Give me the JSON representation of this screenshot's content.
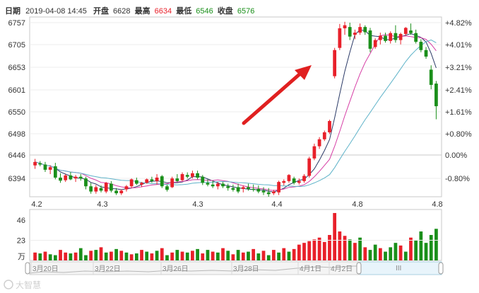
{
  "header": {
    "date_label": "日期",
    "date_value": "2019-04-08 14:45",
    "open_label": "开盘",
    "open_value": "6628",
    "high_label": "最高",
    "high_value": "6634",
    "low_label": "最低",
    "low_value": "6546",
    "close_label": "收盘",
    "close_value": "6576"
  },
  "colors": {
    "up": "#e8202a",
    "down": "#1a8f1a",
    "ma5": "#2b3a67",
    "ma10": "#d63da5",
    "ma20": "#5fb3c9",
    "pct_up": "#e8202a",
    "pct_down": "#1a8f1a",
    "arrow": "#e02020"
  },
  "price_axis": [
    "6757",
    "6705",
    "6653",
    "6601",
    "6550",
    "6498",
    "6446",
    "6394"
  ],
  "pct_axis": [
    "+4.82%",
    "+4.01%",
    "+3.21%",
    "+2.41%",
    "+1.61%",
    "+0.80%",
    "0.00%",
    "-0.80%"
  ],
  "x_labels": [
    "4.2",
    "4.3",
    "4.3",
    "4.4",
    "4.8",
    "4.8"
  ],
  "volume_axis": [
    "46",
    "23"
  ],
  "volume_unit": "万",
  "navigator": {
    "labels": [
      "3月20日",
      "3月22日",
      "3月26日",
      "3月28日",
      "4月1日",
      "4月2日"
    ],
    "grip": "III"
  },
  "watermark": "大智慧",
  "chart_data": {
    "type": "candlestick",
    "ylim": [
      6368,
      6768
    ],
    "candles": [
      [
        6440,
        6455,
        6432,
        6448
      ],
      [
        6445,
        6450,
        6438,
        6442
      ],
      [
        6442,
        6448,
        6425,
        6430
      ],
      [
        6430,
        6440,
        6420,
        6436
      ],
      [
        6438,
        6446,
        6408,
        6412
      ],
      [
        6412,
        6422,
        6400,
        6405
      ],
      [
        6406,
        6420,
        6402,
        6417
      ],
      [
        6417,
        6425,
        6406,
        6408
      ],
      [
        6410,
        6418,
        6402,
        6414
      ],
      [
        6414,
        6420,
        6405,
        6410
      ],
      [
        6410,
        6414,
        6385,
        6392
      ],
      [
        6392,
        6400,
        6375,
        6380
      ],
      [
        6380,
        6395,
        6375,
        6390
      ],
      [
        6388,
        6394,
        6378,
        6382
      ],
      [
        6380,
        6402,
        6376,
        6400
      ],
      [
        6398,
        6404,
        6378,
        6382
      ],
      [
        6382,
        6388,
        6372,
        6376
      ],
      [
        6376,
        6385,
        6372,
        6382
      ],
      [
        6385,
        6395,
        6380,
        6392
      ],
      [
        6392,
        6410,
        6388,
        6408
      ],
      [
        6406,
        6412,
        6395,
        6398
      ],
      [
        6396,
        6402,
        6390,
        6400
      ],
      [
        6400,
        6410,
        6398,
        6408
      ],
      [
        6408,
        6414,
        6400,
        6404
      ],
      [
        6404,
        6420,
        6396,
        6412
      ],
      [
        6415,
        6418,
        6388,
        6392
      ],
      [
        6392,
        6396,
        6380,
        6384
      ],
      [
        6390,
        6414,
        6388,
        6410
      ],
      [
        6410,
        6420,
        6402,
        6404
      ],
      [
        6406,
        6424,
        6404,
        6420
      ],
      [
        6418,
        6424,
        6410,
        6414
      ],
      [
        6414,
        6428,
        6410,
        6422
      ],
      [
        6422,
        6428,
        6408,
        6412
      ],
      [
        6414,
        6418,
        6395,
        6400
      ],
      [
        6400,
        6408,
        6392,
        6396
      ],
      [
        6396,
        6405,
        6388,
        6392
      ],
      [
        6392,
        6402,
        6385,
        6398
      ],
      [
        6398,
        6402,
        6388,
        6392
      ],
      [
        6392,
        6398,
        6382,
        6388
      ],
      [
        6388,
        6396,
        6380,
        6384
      ],
      [
        6390,
        6398,
        6376,
        6380
      ],
      [
        6386,
        6394,
        6378,
        6390
      ],
      [
        6390,
        6398,
        6382,
        6386
      ],
      [
        6386,
        6396,
        6380,
        6384
      ],
      [
        6386,
        6394,
        6376,
        6380
      ],
      [
        6382,
        6390,
        6372,
        6378
      ],
      [
        6378,
        6388,
        6368,
        6374
      ],
      [
        6376,
        6384,
        6372,
        6380
      ],
      [
        6378,
        6405,
        6372,
        6402
      ],
      [
        6400,
        6408,
        6394,
        6404
      ],
      [
        6404,
        6420,
        6400,
        6418
      ],
      [
        6410,
        6414,
        6396,
        6400
      ],
      [
        6400,
        6410,
        6396,
        6404
      ],
      [
        6404,
        6420,
        6400,
        6416
      ],
      [
        6416,
        6460,
        6412,
        6456
      ],
      [
        6456,
        6490,
        6452,
        6484
      ],
      [
        6484,
        6505,
        6478,
        6500
      ],
      [
        6500,
        6520,
        6496,
        6516
      ],
      [
        6516,
        6545,
        6512,
        6542
      ],
      [
        6645,
        6710,
        6640,
        6705
      ],
      [
        6710,
        6765,
        6705,
        6755
      ],
      [
        6755,
        6770,
        6740,
        6762
      ],
      [
        6758,
        6768,
        6728,
        6736
      ],
      [
        6740,
        6752,
        6730,
        6745
      ],
      [
        6745,
        6766,
        6740,
        6758
      ],
      [
        6758,
        6762,
        6740,
        6746
      ],
      [
        6750,
        6756,
        6700,
        6708
      ],
      [
        6712,
        6732,
        6708,
        6728
      ],
      [
        6728,
        6745,
        6718,
        6738
      ],
      [
        6738,
        6745,
        6722,
        6726
      ],
      [
        6726,
        6748,
        6720,
        6744
      ],
      [
        6744,
        6762,
        6722,
        6728
      ],
      [
        6728,
        6745,
        6718,
        6742
      ],
      [
        6742,
        6758,
        6738,
        6756
      ],
      [
        6750,
        6766,
        6740,
        6744
      ],
      [
        6744,
        6752,
        6720,
        6724
      ],
      [
        6724,
        6730,
        6700,
        6705
      ],
      [
        6705,
        6712,
        6685,
        6690
      ],
      [
        6660,
        6670,
        6615,
        6625
      ],
      [
        6628,
        6634,
        6546,
        6576
      ]
    ],
    "volume_ylim": [
      0,
      58
    ],
    "volumes": [
      [
        9,
        1
      ],
      [
        8,
        0
      ],
      [
        10,
        1
      ],
      [
        7,
        0
      ],
      [
        6,
        0
      ],
      [
        12,
        1
      ],
      [
        9,
        1
      ],
      [
        8,
        0
      ],
      [
        9,
        1
      ],
      [
        14,
        0
      ],
      [
        6,
        0
      ],
      [
        11,
        1
      ],
      [
        12,
        0
      ],
      [
        15,
        1
      ],
      [
        9,
        0
      ],
      [
        10,
        1
      ],
      [
        13,
        0
      ],
      [
        11,
        1
      ],
      [
        9,
        0
      ],
      [
        7,
        1
      ],
      [
        8,
        0
      ],
      [
        12,
        1
      ],
      [
        10,
        0
      ],
      [
        8,
        1
      ],
      [
        11,
        0
      ],
      [
        14,
        1
      ],
      [
        6,
        0
      ],
      [
        9,
        1
      ],
      [
        12,
        0
      ],
      [
        10,
        1
      ],
      [
        9,
        0
      ],
      [
        11,
        1
      ],
      [
        13,
        0
      ],
      [
        8,
        1
      ],
      [
        12,
        0
      ],
      [
        10,
        1
      ],
      [
        9,
        0
      ],
      [
        14,
        1
      ],
      [
        11,
        0
      ],
      [
        7,
        1
      ],
      [
        12,
        0
      ],
      [
        9,
        1
      ],
      [
        10,
        0
      ],
      [
        13,
        1
      ],
      [
        8,
        0
      ],
      [
        11,
        1
      ],
      [
        6,
        0
      ],
      [
        12,
        1
      ],
      [
        9,
        0
      ],
      [
        14,
        1
      ],
      [
        10,
        0
      ],
      [
        13,
        1
      ],
      [
        18,
        1
      ],
      [
        20,
        1
      ],
      [
        22,
        1
      ],
      [
        24,
        1
      ],
      [
        26,
        1
      ],
      [
        21,
        1
      ],
      [
        29,
        1
      ],
      [
        54,
        1
      ],
      [
        33,
        1
      ],
      [
        28,
        1
      ],
      [
        24,
        0
      ],
      [
        20,
        1
      ],
      [
        26,
        0
      ],
      [
        15,
        1
      ],
      [
        12,
        0
      ],
      [
        18,
        0
      ],
      [
        14,
        1
      ],
      [
        10,
        0
      ],
      [
        15,
        0
      ],
      [
        20,
        0
      ],
      [
        17,
        1
      ],
      [
        10,
        0
      ],
      [
        26,
        1
      ],
      [
        23,
        0
      ],
      [
        33,
        0
      ],
      [
        20,
        0
      ],
      [
        29,
        0
      ],
      [
        36,
        0
      ]
    ]
  }
}
